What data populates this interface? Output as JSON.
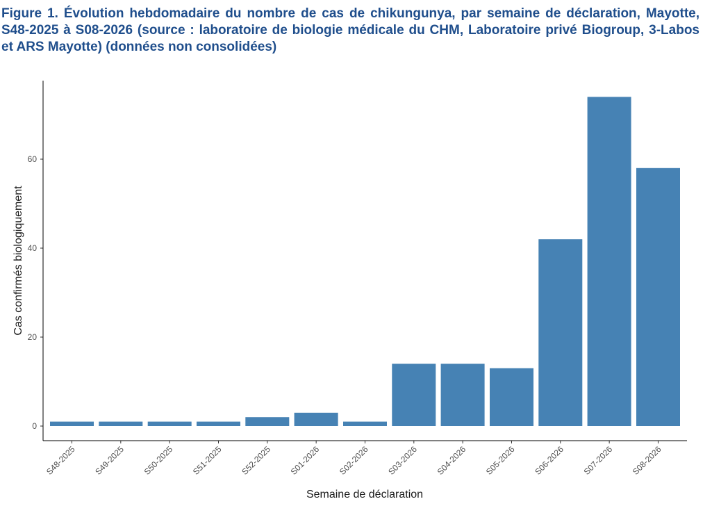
{
  "figure": {
    "title": "Figure 1. Évolution hebdomadaire du nombre de cas de chikungunya, par semaine de déclaration, Mayotte, S48-2025 à S08-2026 (source : laboratoire de biologie médicale du CHM, Laboratoire privé Biogroup, 3-Labos et ARS Mayotte) (données non consolidées)"
  },
  "chart_data": {
    "type": "bar",
    "categories": [
      "S48-2025",
      "S49-2025",
      "S50-2025",
      "S51-2025",
      "S52-2025",
      "S01-2026",
      "S02-2026",
      "S03-2026",
      "S04-2026",
      "S05-2026",
      "S06-2026",
      "S07-2026",
      "S08-2026"
    ],
    "values": [
      1,
      1,
      1,
      1,
      2,
      3,
      1,
      14,
      14,
      13,
      42,
      74,
      58
    ],
    "xlabel": "Semaine de déclaration",
    "ylabel": "Cas confirmés biologiquement",
    "ylim": [
      0,
      77
    ],
    "yticks": [
      0,
      20,
      40,
      60
    ],
    "grid": false,
    "bar_color": "#4682b4"
  }
}
